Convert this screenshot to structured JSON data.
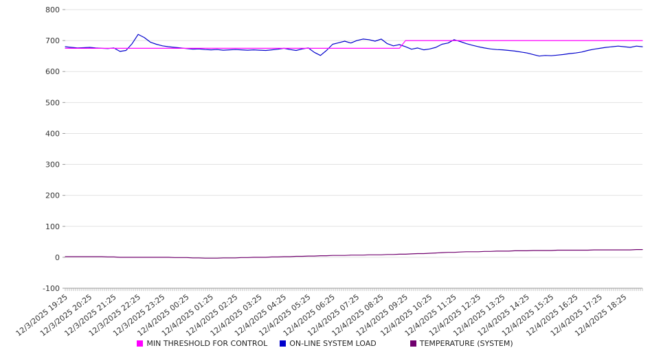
{
  "chart_data": {
    "type": "line",
    "title": "",
    "xlabel": "",
    "ylabel": "",
    "ylim": [
      -100,
      800
    ],
    "y_ticks": [
      -100,
      0,
      100,
      200,
      300,
      400,
      500,
      600,
      700,
      800
    ],
    "grid": true,
    "legend_position": "bottom",
    "points_per_label": 4,
    "x_tick_labels": [
      "12/3/2025 19:25",
      "12/3/2025 20:25",
      "12/3/2025 21:25",
      "12/3/2025 22:25",
      "12/3/2025 23:25",
      "12/4/2025 00:25",
      "12/4/2025 01:25",
      "12/4/2025 02:25",
      "12/4/2025 03:25",
      "12/4/2025 04:25",
      "12/4/2025 05:25",
      "12/4/2025 06:25",
      "12/4/2025 07:25",
      "12/4/2025 08:25",
      "12/4/2025 09:25",
      "12/4/2025 10:25",
      "12/4/2025 11:25",
      "12/4/2025 12:25",
      "12/4/2025 13:25",
      "12/4/2025 14:25",
      "12/4/2025 15:25",
      "12/4/2025 16:25",
      "12/4/2025 17:25",
      "12/4/2025 18:25"
    ],
    "series": [
      {
        "name": "MIN THRESHOLD FOR CONTROL",
        "color": "#ff00ff",
        "values": [
          675,
          675,
          675,
          675,
          675,
          675,
          675,
          675,
          675,
          675,
          675,
          675,
          675,
          675,
          675,
          675,
          675,
          675,
          675,
          675,
          675,
          675,
          675,
          675,
          675,
          675,
          675,
          675,
          675,
          675,
          675,
          675,
          675,
          675,
          675,
          675,
          675,
          675,
          675,
          675,
          675,
          675,
          675,
          675,
          675,
          675,
          675,
          675,
          675,
          675,
          675,
          675,
          675,
          675,
          675,
          675,
          700,
          700,
          700,
          700,
          700,
          700,
          700,
          700,
          700,
          700,
          700,
          700,
          700,
          700,
          700,
          700,
          700,
          700,
          700,
          700,
          700,
          700,
          700,
          700,
          700,
          700,
          700,
          700,
          700,
          700,
          700,
          700,
          700,
          700,
          700,
          700,
          700,
          700,
          700,
          700
        ]
      },
      {
        "name": "ON-LINE SYSTEM LOAD",
        "color": "#0000cc",
        "values": [
          680,
          678,
          676,
          677,
          678,
          676,
          675,
          674,
          676,
          665,
          668,
          690,
          720,
          710,
          695,
          688,
          683,
          680,
          678,
          676,
          674,
          672,
          673,
          671,
          670,
          671,
          669,
          670,
          671,
          670,
          669,
          670,
          669,
          668,
          670,
          672,
          675,
          671,
          668,
          673,
          676,
          662,
          652,
          668,
          688,
          693,
          698,
          692,
          700,
          705,
          703,
          698,
          705,
          690,
          683,
          687,
          680,
          672,
          676,
          670,
          673,
          678,
          688,
          692,
          703,
          697,
          690,
          685,
          680,
          676,
          673,
          671,
          670,
          668,
          666,
          663,
          660,
          655,
          650,
          652,
          651,
          653,
          655,
          658,
          660,
          663,
          668,
          672,
          675,
          678,
          680,
          682,
          680,
          678,
          682,
          680
        ]
      },
      {
        "name": "TEMPERATURE (SYSTEM)",
        "color": "#70006e",
        "values": [
          2,
          2,
          2,
          2,
          2,
          2,
          2,
          1,
          1,
          0,
          0,
          0,
          0,
          0,
          0,
          0,
          0,
          0,
          -1,
          -1,
          -1,
          -2,
          -2,
          -3,
          -3,
          -3,
          -2,
          -2,
          -2,
          -1,
          -1,
          0,
          0,
          0,
          1,
          1,
          2,
          2,
          3,
          3,
          4,
          4,
          5,
          5,
          6,
          6,
          6,
          7,
          7,
          7,
          8,
          8,
          8,
          9,
          9,
          10,
          10,
          11,
          12,
          12,
          13,
          14,
          15,
          16,
          16,
          17,
          18,
          18,
          18,
          19,
          19,
          20,
          20,
          20,
          21,
          21,
          21,
          22,
          22,
          22,
          22,
          23,
          23,
          23,
          23,
          23,
          23,
          24,
          24,
          24,
          24,
          24,
          24,
          24,
          25,
          25
        ]
      }
    ]
  },
  "legend": {
    "items": [
      {
        "label": "MIN THRESHOLD FOR CONTROL"
      },
      {
        "label": "ON-LINE SYSTEM LOAD"
      },
      {
        "label": "TEMPERATURE (SYSTEM)"
      }
    ]
  }
}
